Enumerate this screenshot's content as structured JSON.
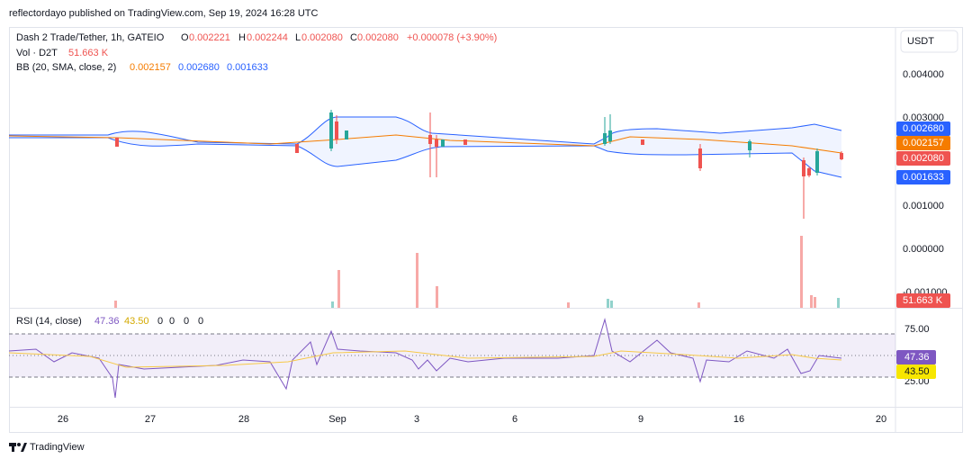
{
  "header": {
    "publisher": "reflectordayo published on TradingView.com, Sep 19, 2024 16:28 UTC"
  },
  "legend": {
    "symbol": "Dash 2 Trade/Tether, 1h, GATEIO",
    "ohlc": [
      {
        "key": "O",
        "value": "0.002221"
      },
      {
        "key": "H",
        "value": "0.002244"
      },
      {
        "key": "L",
        "value": "0.002080"
      },
      {
        "key": "C",
        "value": "0.002080"
      }
    ],
    "change": "+0.000078 (+3.90%)",
    "volume": {
      "label": "Vol · D2T",
      "value": "51.663 K"
    },
    "bb": {
      "label": "BB (20, SMA, close, 2)",
      "values": [
        "0.002157",
        "0.002680",
        "0.001633"
      ]
    }
  },
  "rsi": {
    "label": "RSI (14, close)",
    "values": [
      "47.36",
      "43.50",
      "0",
      "0",
      "0",
      "0"
    ]
  },
  "currency": "USDT",
  "price_axis": [
    "0.004000",
    "0.003000",
    "0.001000",
    "0.000000",
    "-0.001000"
  ],
  "price_labels": [
    "0.002680",
    "0.002157",
    "0.002080",
    "0.001633",
    "51.663 K"
  ],
  "rsi_axis": [
    "75.00",
    "25.00"
  ],
  "rsi_labels": [
    "47.36",
    "43.50"
  ],
  "time_axis": [
    "26",
    "27",
    "28",
    "Sep",
    "3",
    "6",
    "9",
    "16",
    "20"
  ],
  "footer": "TradingView"
}
